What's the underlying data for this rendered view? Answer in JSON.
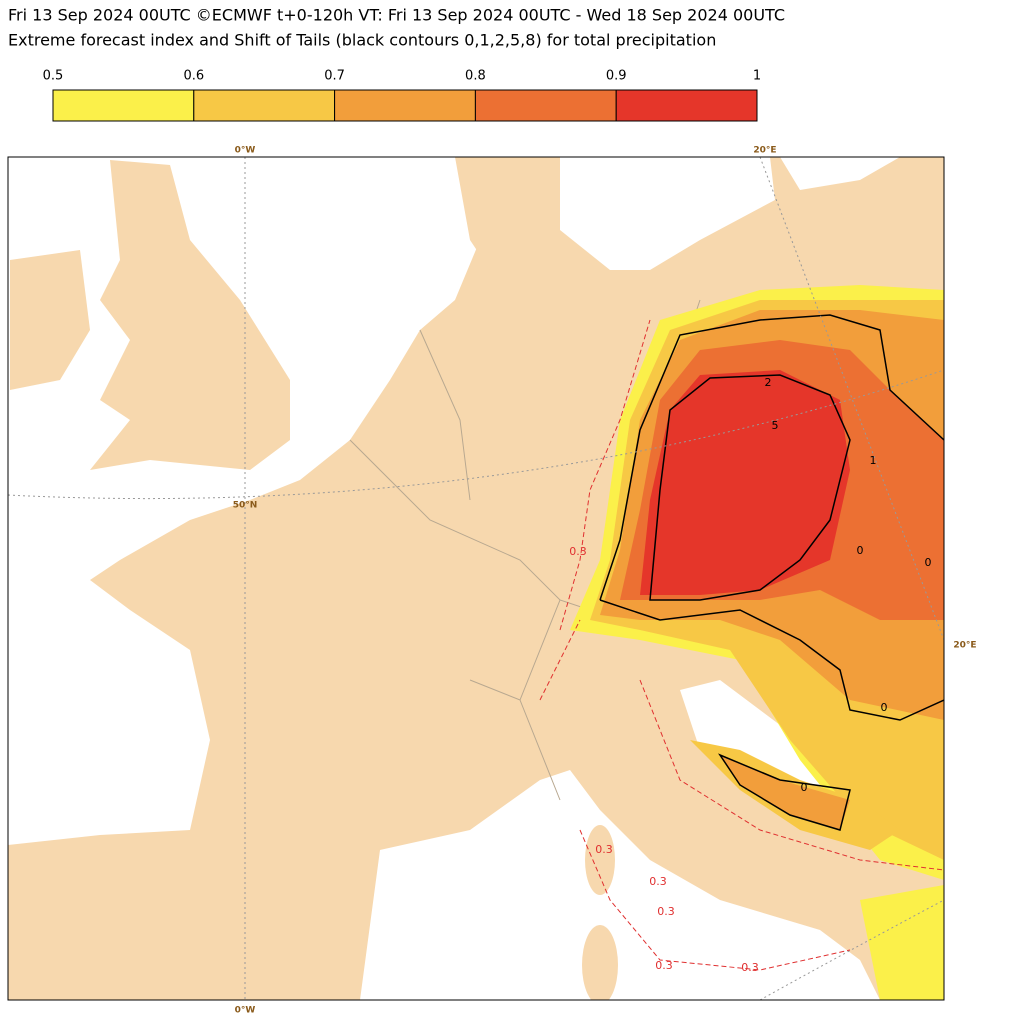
{
  "header": {
    "title": "Fri 13 Sep 2024 00UTC ©ECMWF t+0-120h  VT: Fri 13 Sep 2024 00UTC - Wed 18 Sep 2024 00UTC",
    "subtitle": "Extreme forecast index and Shift of Tails (black contours 0,1,2,5,8) for total precipitation"
  },
  "colorbar": {
    "ticks": [
      0.5,
      0.6,
      0.7,
      0.8,
      0.9,
      1
    ],
    "colors": [
      "#fbf04a",
      "#f7c845",
      "#f29e3b",
      "#ec7033",
      "#e5362a"
    ]
  },
  "map": {
    "graticule_labels": [
      "0°W",
      "20°E",
      "50°N",
      "20°E",
      "0°W"
    ],
    "contour_labels": [
      "2",
      "5",
      "1",
      "0",
      "0",
      "0",
      "0",
      "0.3",
      "0.3",
      "0.3",
      "0.3",
      "0.3",
      "0.3"
    ]
  }
}
